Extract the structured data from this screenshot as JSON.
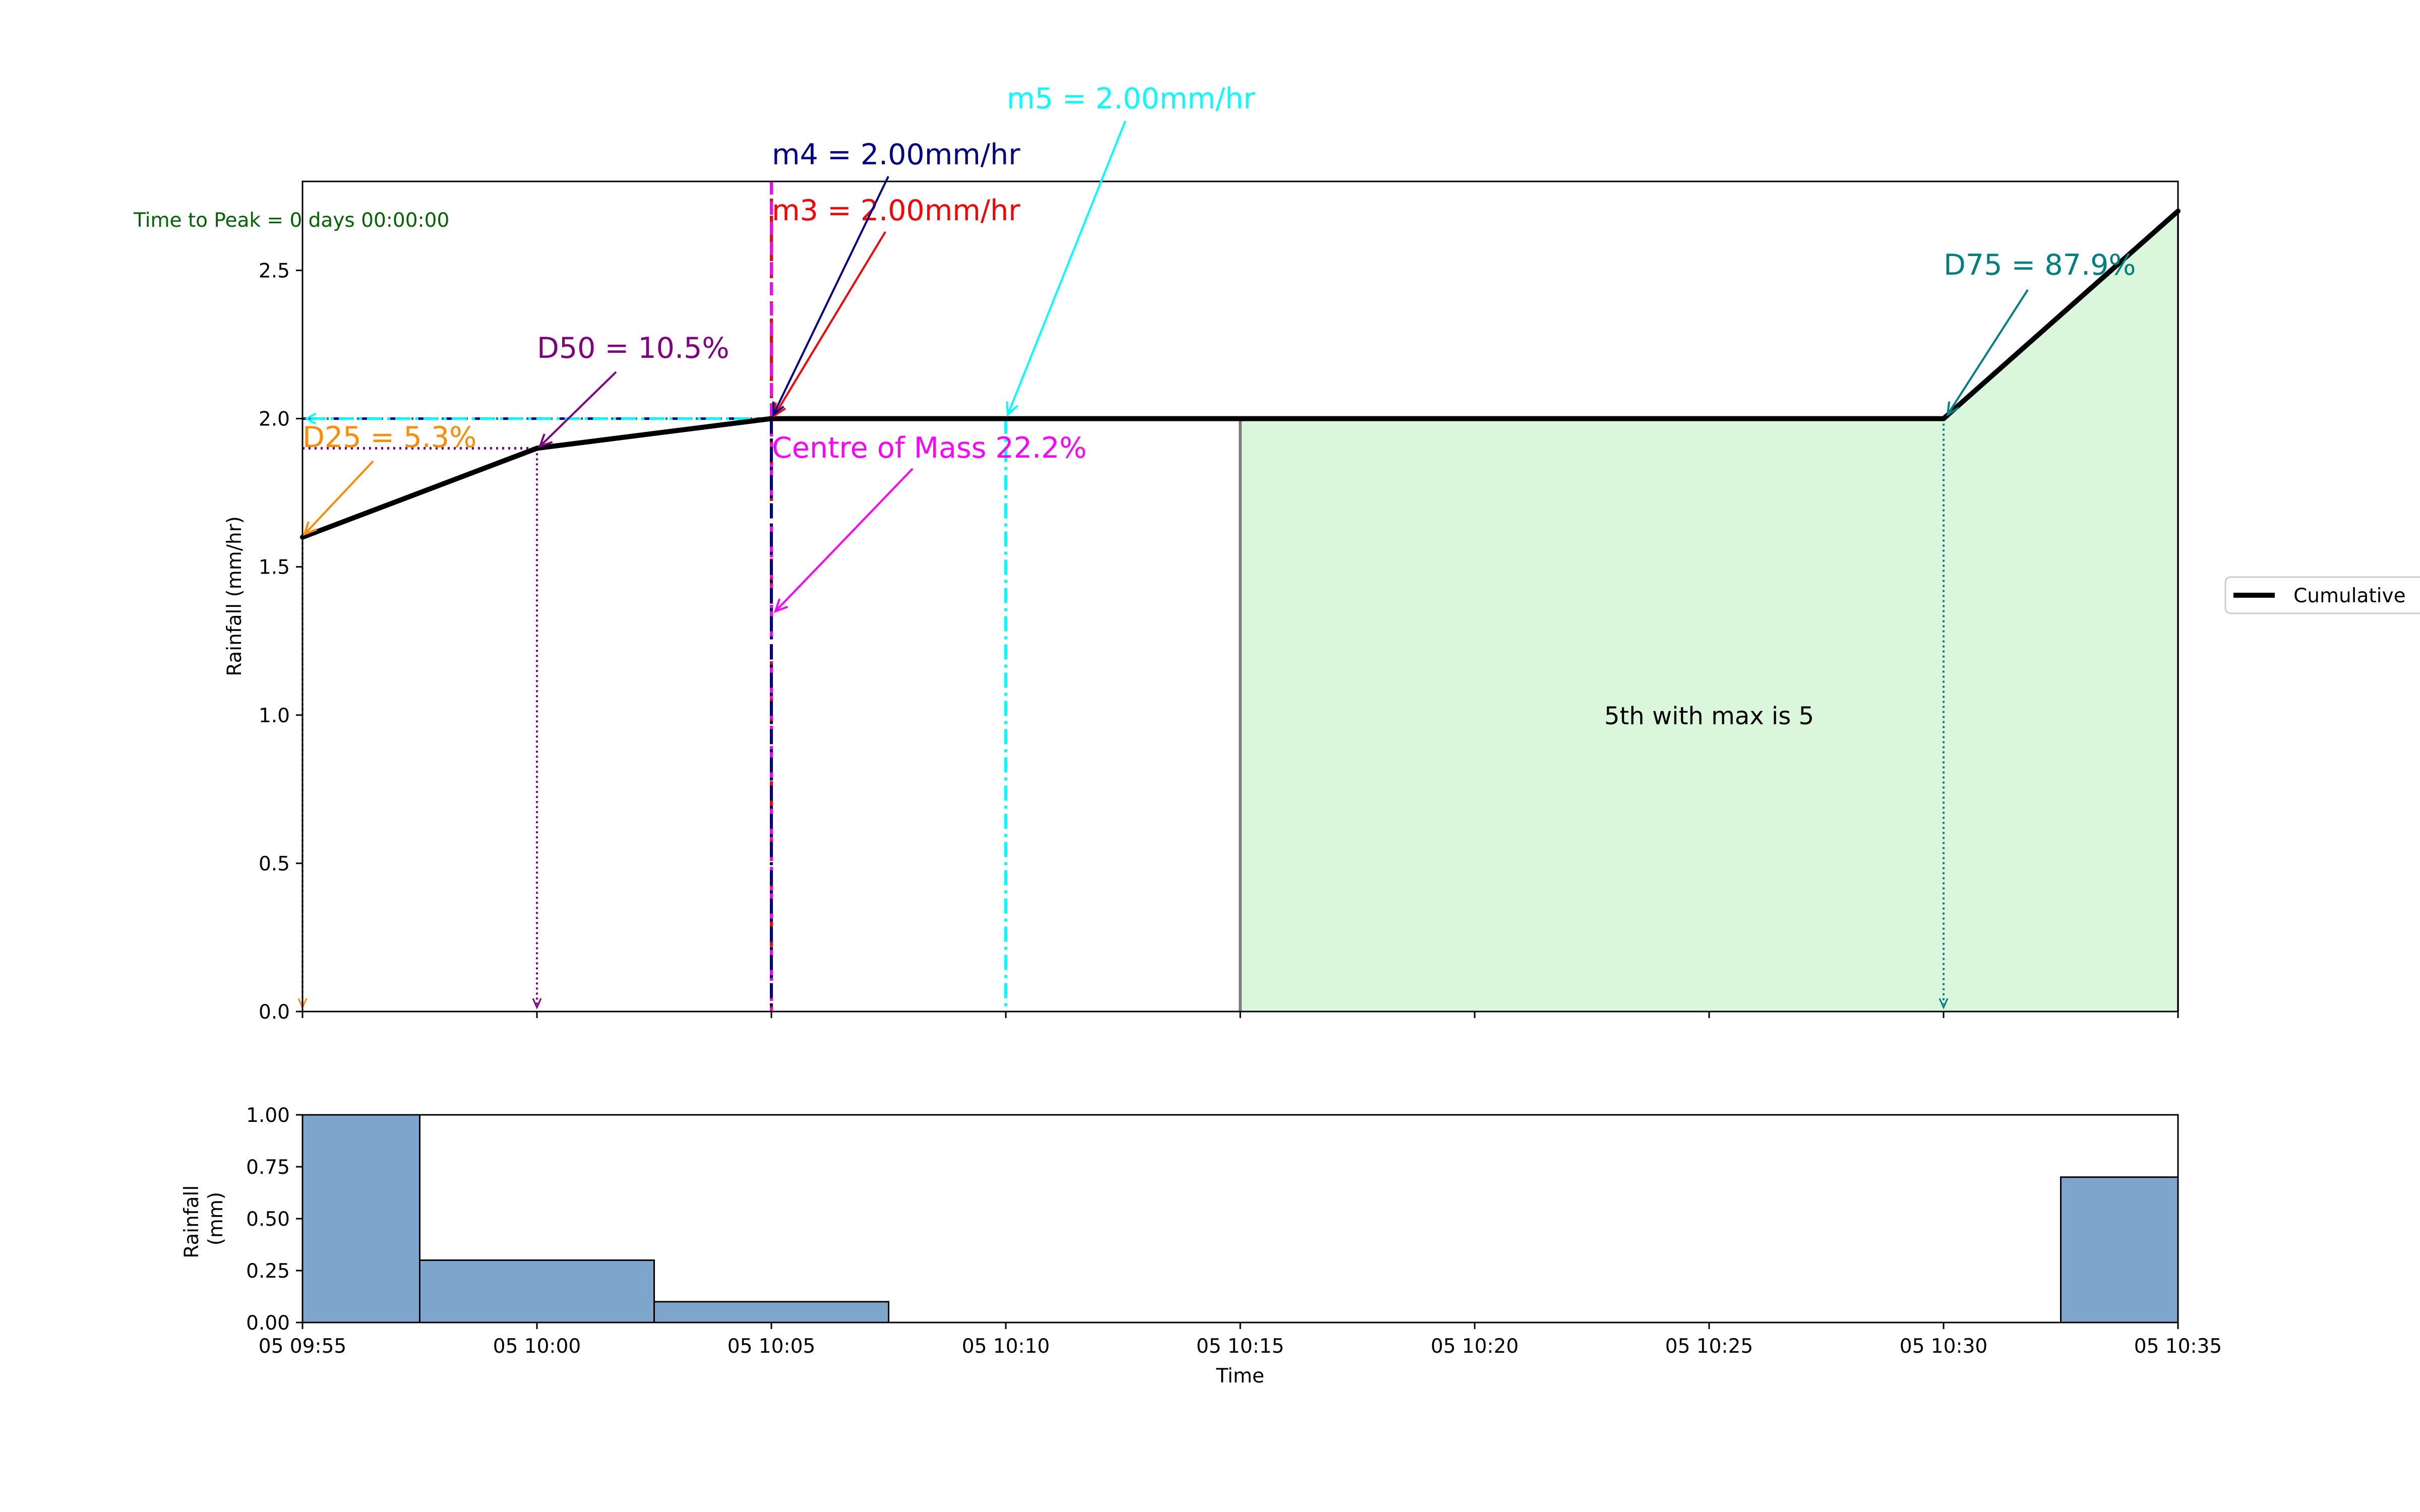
{
  "chart_data": [
    {
      "type": "line",
      "panel": "top",
      "ylabel": "Rainfall (mm/hr)",
      "ylim": [
        0.0,
        2.8
      ],
      "yticks": [
        "0.0",
        "0.5",
        "1.0",
        "1.5",
        "2.0",
        "2.5"
      ],
      "series": [
        {
          "name": "Cumulative",
          "x": [
            "05 09:55",
            "05 10:00",
            "05 10:05",
            "05 10:10",
            "05 10:15",
            "05 10:20",
            "05 10:25",
            "05 10:30",
            "05 10:35"
          ],
          "y": [
            1.6,
            1.9,
            2.0,
            2.0,
            2.0,
            2.0,
            2.0,
            2.0,
            2.7
          ]
        }
      ],
      "legend": {
        "entries": [
          "Cumulative"
        ],
        "placement": "right"
      },
      "shaded_region": {
        "x_start": "05 10:15",
        "x_end": "05 10:35",
        "y_top": 2.0,
        "label": "5th with max is 5",
        "color": "#dbf7db"
      },
      "annotations": {
        "time_to_peak": "Time to Peak = 0 days 00:00:00",
        "d25": "D25 = 5.3%",
        "d50": "D50 = 10.5%",
        "d75": "D75 = 87.9%",
        "centre_of_mass": "Centre of Mass 22.2%",
        "m3": "m3 = 2.00mm/hr",
        "m4": "m4 = 2.00mm/hr",
        "m5": "m5 = 2.00mm/hr"
      },
      "colors": {
        "d25": "#ff8c00",
        "d50": "#800080",
        "d75": "#008080",
        "com": "#ff00ff",
        "m3": "#ff0000",
        "m4": "#00008b",
        "m5": "#00ffff",
        "ttp": "#006400"
      }
    },
    {
      "type": "bar",
      "panel": "bottom",
      "ylabel": "Rainfall\n(mm)",
      "xlabel": "Time",
      "ylim": [
        0.0,
        1.0
      ],
      "yticks": [
        "0.00",
        "0.25",
        "0.50",
        "0.75",
        "1.00"
      ],
      "xticks": [
        "05 09:55",
        "05 10:00",
        "05 10:05",
        "05 10:10",
        "05 10:15",
        "05 10:20",
        "05 10:25",
        "05 10:30",
        "05 10:35"
      ],
      "bars": [
        {
          "start": "05 09:55",
          "end": "05 09:57:30",
          "value": 1.0
        },
        {
          "start": "05 09:57:30",
          "end": "05 10:02:30",
          "value": 0.3
        },
        {
          "start": "05 10:02:30",
          "end": "05 10:07:30",
          "value": 0.1
        },
        {
          "start": "05 10:32:30",
          "end": "05 10:35",
          "value": 0.7
        }
      ],
      "bar_color": "#7ea6cc"
    }
  ]
}
